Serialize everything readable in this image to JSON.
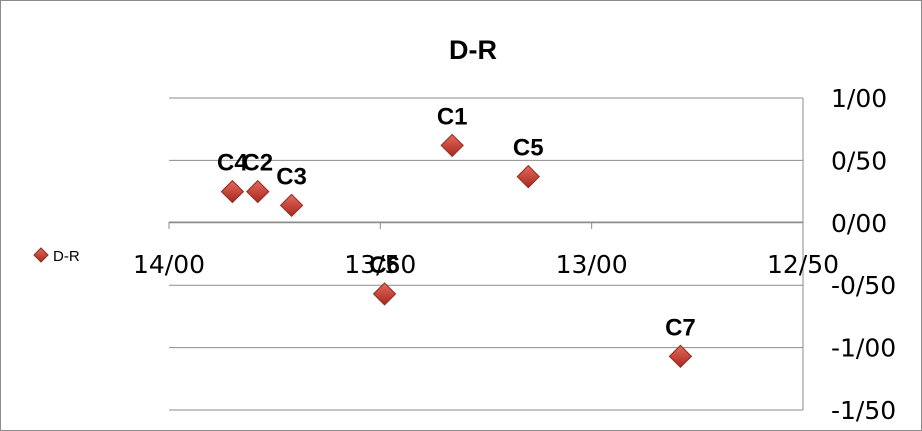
{
  "chart_data": {
    "type": "scatter",
    "title": "D-R",
    "xlabel": "",
    "ylabel": "",
    "xlim": [
      14.0,
      12.5
    ],
    "ylim": [
      -1.5,
      1.0
    ],
    "x_reversed": true,
    "x_ticks": [
      14.0,
      13.5,
      13.0,
      12.5
    ],
    "x_tick_labels": [
      "14/00",
      "13/50",
      "13/00",
      "12/50"
    ],
    "y_ticks": [
      1.0,
      0.5,
      0.0,
      -0.5,
      -1.0,
      -1.5
    ],
    "y_tick_labels": [
      "1/00",
      "0/50",
      "0/00",
      "-0/50",
      "-1/00",
      "-1/50"
    ],
    "grid": "horizontal",
    "legend_position": "left",
    "series": [
      {
        "name": "D-R",
        "color": "#c0392b",
        "marker": "diamond",
        "points": [
          {
            "label": "C1",
            "x": 13.33,
            "y": 0.62
          },
          {
            "label": "C2",
            "x": 13.79,
            "y": 0.25
          },
          {
            "label": "C3",
            "x": 13.71,
            "y": 0.14
          },
          {
            "label": "C4",
            "x": 13.85,
            "y": 0.25
          },
          {
            "label": "C5",
            "x": 13.15,
            "y": 0.37
          },
          {
            "label": "C6",
            "x": 13.49,
            "y": -0.57
          },
          {
            "label": "C7",
            "x": 12.79,
            "y": -1.07
          }
        ]
      }
    ]
  }
}
